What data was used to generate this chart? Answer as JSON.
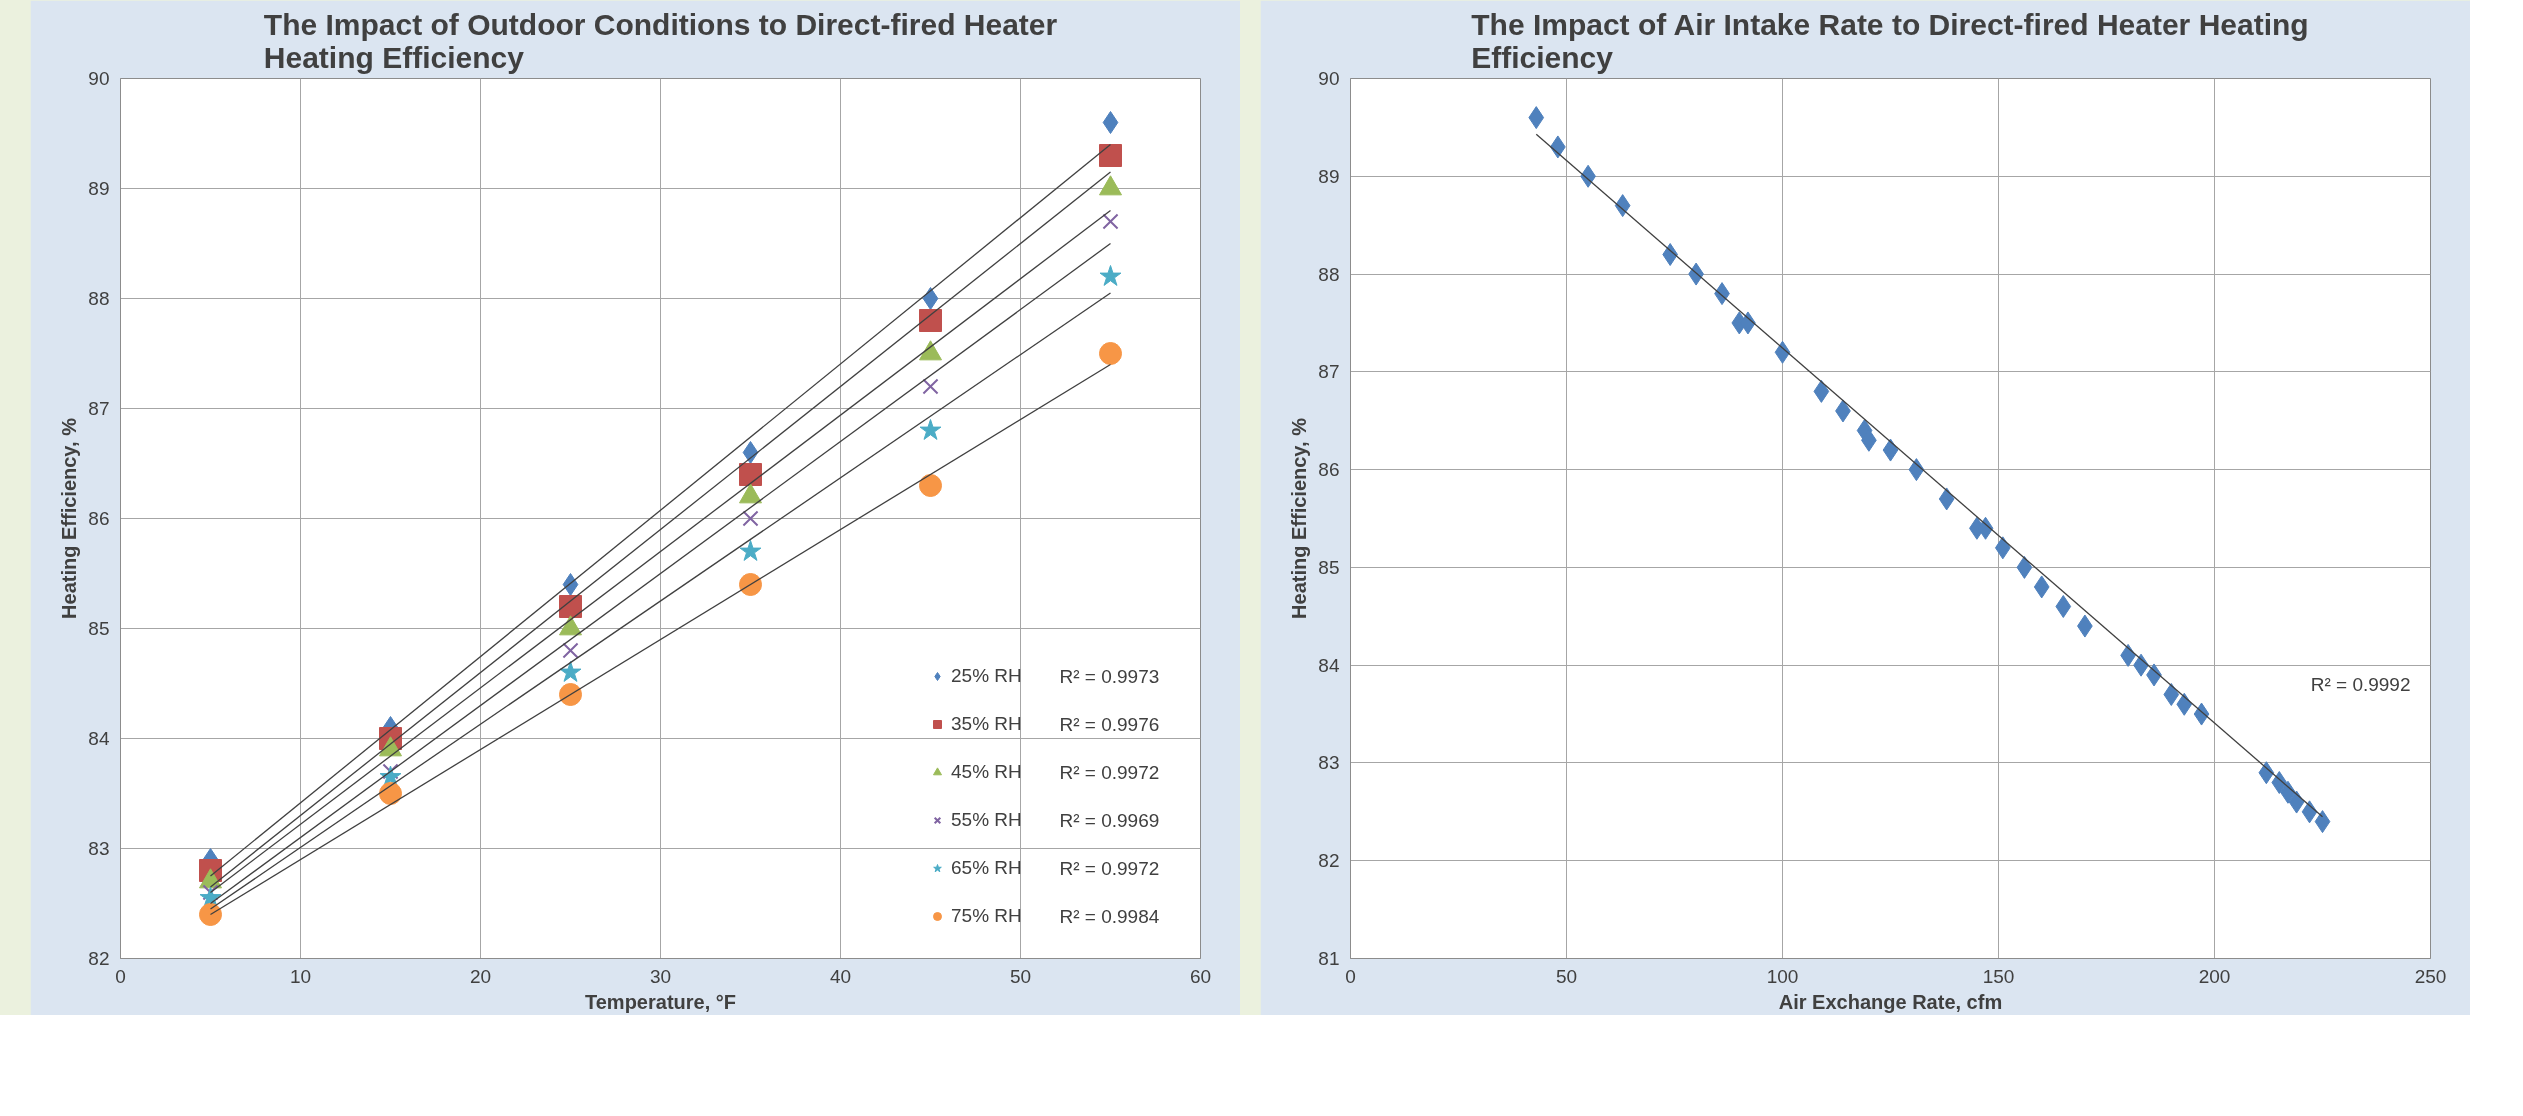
{
  "chart_data": [
    {
      "type": "scatter",
      "title": "The Impact of Outdoor Conditions to Direct-fired Heater Heating Efficiency",
      "xlabel": "Temperature, °F",
      "ylabel": "Heating Efficiency, %",
      "x": [
        5,
        15,
        25,
        35,
        45,
        55
      ],
      "series": [
        {
          "name": "25% RH",
          "color": "#4f81bd",
          "marker": "diamond",
          "values": [
            82.9,
            84.1,
            85.4,
            86.6,
            88.0,
            89.6
          ]
        },
        {
          "name": "35% RH",
          "color": "#c0504d",
          "marker": "square",
          "values": [
            82.8,
            84.0,
            85.2,
            86.4,
            87.8,
            89.3
          ]
        },
        {
          "name": "45% RH",
          "color": "#9bbb59",
          "marker": "triangle",
          "values": [
            82.7,
            83.9,
            85.0,
            86.2,
            87.5,
            89.0
          ]
        },
        {
          "name": "55% RH",
          "color": "#8064a2",
          "marker": "cross",
          "values": [
            82.6,
            83.7,
            84.8,
            86.0,
            87.2,
            88.7
          ]
        },
        {
          "name": "65% RH",
          "color": "#4bacc6",
          "marker": "star",
          "values": [
            82.55,
            83.65,
            84.6,
            85.7,
            86.8,
            88.2
          ]
        },
        {
          "name": "75% RH",
          "color": "#f79646",
          "marker": "circle",
          "values": [
            82.4,
            83.5,
            84.4,
            85.4,
            86.3,
            87.5
          ]
        },
        {
          "type": "line",
          "color": "#404040",
          "x": [
            5,
            55
          ],
          "values": [
            82.75,
            89.4
          ]
        },
        {
          "type": "line",
          "color": "#404040",
          "x": [
            5,
            55
          ],
          "values": [
            82.65,
            89.15
          ]
        },
        {
          "type": "line",
          "color": "#404040",
          "x": [
            5,
            55
          ],
          "values": [
            82.6,
            88.8
          ]
        },
        {
          "type": "line",
          "color": "#404040",
          "x": [
            5,
            55
          ],
          "values": [
            82.5,
            88.5
          ]
        },
        {
          "type": "line",
          "color": "#404040",
          "x": [
            5,
            55
          ],
          "values": [
            82.45,
            88.05
          ]
        },
        {
          "type": "line",
          "color": "#404040",
          "x": [
            5,
            55
          ],
          "values": [
            82.4,
            87.4
          ]
        }
      ],
      "xlim": [
        0,
        60
      ],
      "xticks": [
        0,
        10,
        20,
        30,
        40,
        50,
        60
      ],
      "ylim": [
        82,
        90
      ],
      "yticks": [
        82,
        83,
        84,
        85,
        86,
        87,
        88,
        89,
        90
      ],
      "grid": true,
      "legend": "bottom right",
      "annotations": [
        "R² = 0.9973",
        "R² = 0.9976",
        "R² = 0.9972",
        "R² = 0.9969",
        "R² = 0.9972",
        "R² = 0.9984"
      ]
    },
    {
      "type": "scatter",
      "title": "The Impact of Air Intake Rate to Direct-fired Heater Heating Efficiency",
      "xlabel": "Air Exchange Rate, cfm",
      "ylabel": "Heating Efficiency, %",
      "series": [
        {
          "color": "#4f81bd",
          "marker": "diamond",
          "x": [
            43,
            48,
            55,
            63,
            74,
            80,
            86,
            90,
            92,
            100,
            109,
            114,
            119,
            120,
            125,
            131,
            138,
            145,
            147,
            151,
            156,
            160,
            165,
            170,
            180,
            183,
            186,
            190,
            193,
            197,
            212,
            215,
            217,
            219,
            222,
            225
          ],
          "values": [
            89.6,
            89.3,
            89.0,
            88.7,
            88.2,
            88.0,
            87.8,
            87.5,
            87.5,
            87.2,
            86.8,
            86.6,
            86.4,
            86.3,
            86.2,
            86.0,
            85.7,
            85.4,
            85.4,
            85.2,
            85.0,
            84.8,
            84.6,
            84.4,
            84.1,
            84.0,
            83.9,
            83.7,
            83.6,
            83.5,
            82.9,
            82.8,
            82.7,
            82.6,
            82.5,
            82.4
          ]
        },
        {
          "type": "line",
          "color": "#404040",
          "x": [
            43,
            225
          ],
          "values": [
            89.43,
            82.45
          ]
        }
      ],
      "xlim": [
        0,
        250
      ],
      "xticks": [
        0,
        50,
        100,
        150,
        200,
        250
      ],
      "ylim": [
        81,
        90
      ],
      "yticks": [
        81,
        82,
        83,
        84,
        85,
        86,
        87,
        88,
        89,
        90
      ],
      "grid": true,
      "annotations": [
        "R² = 0.9992"
      ]
    }
  ]
}
